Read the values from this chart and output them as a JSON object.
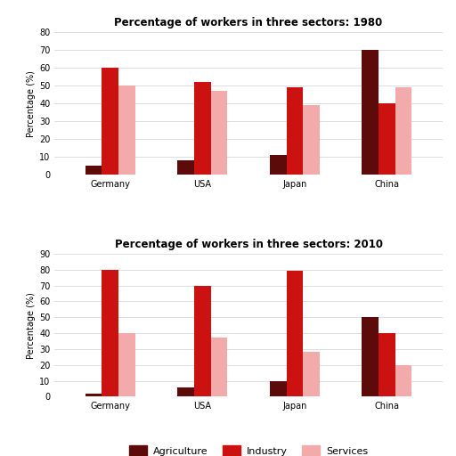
{
  "title_1980": "Percentage of workers in three sectors: 1980",
  "title_2010": "Percentage of workers in three sectors: 2010",
  "ylabel": "Percentage (%)",
  "countries": [
    "Germany",
    "USA",
    "Japan",
    "China"
  ],
  "sectors": [
    "Agriculture",
    "Industry",
    "Services"
  ],
  "colors": [
    "#5c0a0a",
    "#cc1111",
    "#f2aaaa"
  ],
  "data_1980": {
    "Agriculture": [
      5,
      8,
      11,
      70
    ],
    "Industry": [
      60,
      52,
      49,
      40
    ],
    "Services": [
      50,
      47,
      39,
      49
    ]
  },
  "data_2010": {
    "Agriculture": [
      2,
      6,
      10,
      50
    ],
    "Industry": [
      80,
      70,
      79,
      40
    ],
    "Services": [
      40,
      37,
      28,
      20
    ]
  },
  "ylim_1980": [
    0,
    80
  ],
  "ylim_2010": [
    0,
    90
  ],
  "yticks_1980": [
    0,
    10,
    20,
    30,
    40,
    50,
    60,
    70,
    80
  ],
  "yticks_2010": [
    0,
    10,
    20,
    30,
    40,
    50,
    60,
    70,
    80,
    90
  ],
  "bg_color": "#ffffff",
  "grid_color": "#dddddd",
  "title_fontsize": 8.5,
  "tick_fontsize": 7,
  "ylabel_fontsize": 7,
  "bar_width": 0.18,
  "legend_fontsize": 8
}
